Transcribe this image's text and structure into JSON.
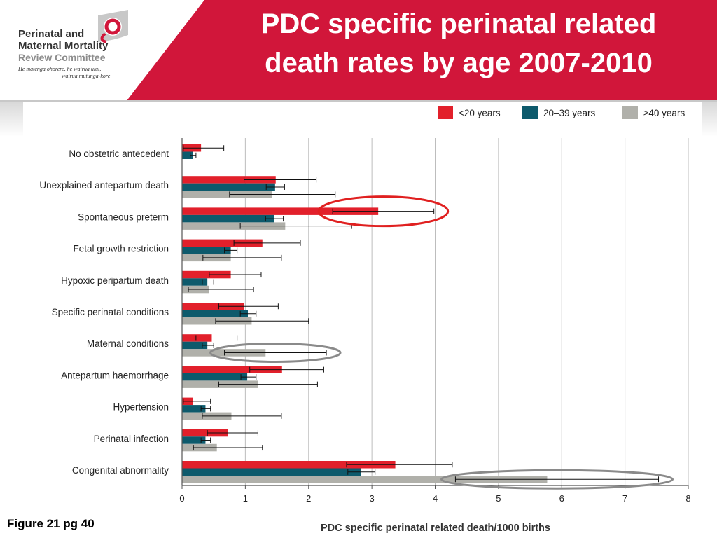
{
  "slide": {
    "title_line1": "PDC specific perinatal related",
    "title_line2": "death rates by age 2007-2010",
    "caption": "Figure 21 pg 40"
  },
  "logo": {
    "line1": "Perinatal and",
    "line2": "Maternal Mortality",
    "line3": "Review Committee",
    "motto1": "He matenga ohorere, he wairua ului,",
    "motto2": "wairua mutunga-kore"
  },
  "colors": {
    "header_red": "#d1163a",
    "under20": "#e2202b",
    "age20to39": "#0d5a6c",
    "over40": "#b0b0aa",
    "highlight_red": "#e02020",
    "highlight_grey": "#8a8a8a"
  },
  "chart_data": {
    "type": "bar",
    "orientation": "horizontal",
    "xlabel": "PDC specific perinatal related death/1000 births",
    "xlim": [
      0,
      8
    ],
    "xticks": [
      0,
      1,
      2,
      3,
      4,
      5,
      6,
      7,
      8
    ],
    "grid": true,
    "legend_position": "top-right",
    "categories": [
      "No obstetric antecedent",
      "Unexplained antepartum death",
      "Spontaneous preterm",
      "Fetal growth restriction",
      "Hypoxic peripartum death",
      "Specific perinatal conditions",
      "Maternal conditions",
      "Antepartum haemorrhage",
      "Hypertension",
      "Perinatal infection",
      "Congenital abnormality"
    ],
    "series": [
      {
        "name": "<20 years",
        "color": "#e2202b",
        "values": [
          0.3,
          1.48,
          3.1,
          1.27,
          0.77,
          0.98,
          0.47,
          1.58,
          0.17,
          0.73,
          3.37
        ],
        "ci_low": [
          0.02,
          0.98,
          2.38,
          0.82,
          0.43,
          0.58,
          0.22,
          1.07,
          0.02,
          0.4,
          2.6
        ],
        "ci_high": [
          0.66,
          2.12,
          3.98,
          1.87,
          1.25,
          1.52,
          0.87,
          2.24,
          0.45,
          1.2,
          4.27
        ]
      },
      {
        "name": "20–39 years",
        "color": "#0d5a6c",
        "values": [
          0.17,
          1.47,
          1.45,
          0.77,
          0.4,
          1.04,
          0.4,
          1.03,
          0.37,
          0.37,
          2.83
        ],
        "ci_low": [
          0.13,
          1.33,
          1.32,
          0.67,
          0.32,
          0.92,
          0.32,
          0.93,
          0.3,
          0.3,
          2.62
        ],
        "ci_high": [
          0.22,
          1.62,
          1.6,
          0.87,
          0.5,
          1.17,
          0.5,
          1.17,
          0.45,
          0.45,
          3.05
        ]
      },
      {
        "name": "≥40 years",
        "color": "#b0b0aa",
        "values": [
          0.0,
          1.42,
          1.63,
          0.77,
          0.43,
          1.1,
          1.32,
          1.2,
          0.78,
          0.55,
          5.77
        ],
        "ci_low": [
          0.0,
          0.75,
          0.92,
          0.33,
          0.1,
          0.53,
          0.67,
          0.58,
          0.32,
          0.18,
          4.32
        ],
        "ci_high": [
          0.0,
          2.42,
          2.68,
          1.57,
          1.13,
          2.0,
          2.28,
          2.14,
          1.57,
          1.27,
          7.53
        ]
      }
    ],
    "highlights": [
      {
        "category": "Spontaneous preterm",
        "series": "<20 years",
        "color": "#e02020"
      },
      {
        "category": "Maternal conditions",
        "series": "≥40 years",
        "color": "#8a8a8a"
      },
      {
        "category": "Congenital abnormality",
        "series": "≥40 years",
        "color": "#8a8a8a"
      }
    ]
  }
}
